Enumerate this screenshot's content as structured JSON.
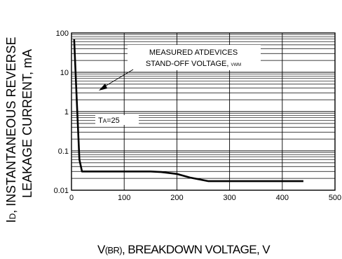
{
  "chart_data": {
    "type": "line",
    "title": "",
    "xlabel": {
      "prefix": "V",
      "sub": "(BR)",
      "rest": ", BREAKDOWN VOLTAGE, V"
    },
    "ylabel": {
      "line1_prefix": "I",
      "line1_sub": "D",
      "line1_rest": ", INSTANTANEOUS REVERSE",
      "line2": "LEAKAGE CURRENT, mA"
    },
    "x_scale": "linear",
    "y_scale": "log",
    "xlim": [
      0,
      500
    ],
    "ylim": [
      0.01,
      100
    ],
    "x_ticks": [
      0,
      100,
      200,
      300,
      400,
      500
    ],
    "x_tick_labels": [
      "0",
      "100",
      "200",
      "300",
      "400",
      "500"
    ],
    "y_ticks": [
      0.01,
      0.1,
      1,
      10,
      100
    ],
    "y_tick_labels": [
      "0.01",
      "0.1",
      "1",
      "10",
      "100"
    ],
    "grid": true,
    "series": [
      {
        "x": [
          5,
          10,
          15,
          20,
          60,
          100,
          150,
          170,
          200,
          225,
          260,
          300,
          400,
          440
        ],
        "y": [
          70,
          2,
          0.06,
          0.03,
          0.03,
          0.03,
          0.03,
          0.029,
          0.026,
          0.021,
          0.017,
          0.017,
          0.017,
          0.017
        ]
      }
    ],
    "annotations": [
      {
        "lines": [
          "MEASURED ATDEVICES",
          "STAND-OFF VOLTAGE, "
        ],
        "sub": "VWM"
      },
      {
        "prefix": "T",
        "sub": "A",
        "rest": "=25"
      }
    ]
  }
}
